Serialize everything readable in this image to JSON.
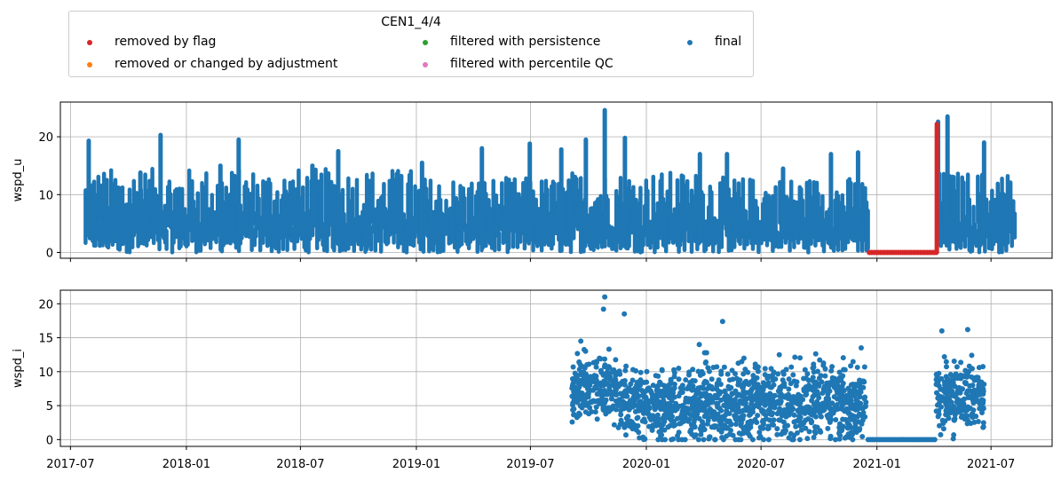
{
  "legend": {
    "title": "CEN1_4/4",
    "entries": [
      {
        "label": "removed by flag",
        "color": "#d62728"
      },
      {
        "label": "removed or changed by adjustment",
        "color": "#ff7f0e"
      },
      {
        "label": "filtered with persistence",
        "color": "#2ca02c"
      },
      {
        "label": "filtered with percentile QC",
        "color": "#e377c2"
      },
      {
        "label": "final",
        "color": "#1f77b4"
      }
    ]
  },
  "chart_data": [
    {
      "type": "scatter",
      "ylabel": "wspd_u",
      "xlim": [
        "2017-06-15",
        "2021-10-06"
      ],
      "ylim": [
        -1,
        26
      ],
      "yticks": [
        0,
        10,
        20
      ],
      "xticks": [
        "2017-07",
        "2018-01",
        "2018-07",
        "2019-01",
        "2019-07",
        "2020-01",
        "2020-07",
        "2021-01",
        "2021-07"
      ],
      "show_xtick_labels": false,
      "grid": true,
      "series": [
        {
          "name": "final",
          "color": "#1f77b4",
          "shape": "dense-bands",
          "segments": [
            {
              "start": "2017-07-25",
              "end": "2018-12-31",
              "low": 0,
              "high": 14.5
            },
            {
              "start": "2019-01-01",
              "end": "2019-04-30",
              "low": 0,
              "high": 13
            },
            {
              "start": "2019-05-01",
              "end": "2019-08-31",
              "low": 0,
              "high": 13
            },
            {
              "start": "2019-09-01",
              "end": "2020-04-15",
              "low": 0,
              "high": 14
            },
            {
              "start": "2020-04-16",
              "end": "2020-12-20",
              "low": 0,
              "high": 13
            },
            {
              "start": "2021-04-08",
              "end": "2021-08-10",
              "low": 0,
              "high": 14
            }
          ],
          "peaks": [
            [
              "2017-07-30",
              19.3
            ],
            [
              "2017-10-20",
              13.8
            ],
            [
              "2017-11-21",
              20.3
            ],
            [
              "2018-02-24",
              15.0
            ],
            [
              "2018-03-25",
              19.5
            ],
            [
              "2018-07-20",
              15.0
            ],
            [
              "2018-08-30",
              17.5
            ],
            [
              "2018-12-08",
              13.2
            ],
            [
              "2019-01-10",
              15.5
            ],
            [
              "2019-04-15",
              18.0
            ],
            [
              "2019-06-30",
              18.8
            ],
            [
              "2019-08-19",
              17.8
            ],
            [
              "2019-09-27",
              19.5
            ],
            [
              "2019-10-27",
              24.6
            ],
            [
              "2019-11-28",
              19.8
            ],
            [
              "2020-03-26",
              17.0
            ],
            [
              "2020-05-08",
              17.0
            ],
            [
              "2020-08-05",
              14.5
            ],
            [
              "2020-10-20",
              17.0
            ],
            [
              "2020-12-02",
              17.3
            ],
            [
              "2021-04-08",
              22.6
            ],
            [
              "2021-04-23",
              23.5
            ],
            [
              "2021-06-20",
              19.0
            ]
          ]
        },
        {
          "name": "removed by flag",
          "color": "#d62728",
          "shape": "flat",
          "segments": [
            {
              "start": "2020-12-20",
              "end": "2021-04-06",
              "value": 0
            }
          ],
          "peaks": [
            [
              "2021-04-06",
              22.2
            ]
          ]
        }
      ]
    },
    {
      "type": "scatter",
      "ylabel": "wspd_i",
      "xlim": [
        "2017-06-15",
        "2021-10-06"
      ],
      "ylim": [
        -1,
        22
      ],
      "yticks": [
        0,
        5,
        10,
        15,
        20
      ],
      "xticks": [
        "2017-07",
        "2018-01",
        "2018-07",
        "2019-01",
        "2019-07",
        "2020-01",
        "2020-07",
        "2021-01",
        "2021-07"
      ],
      "show_xtick_labels": true,
      "grid": true,
      "series": [
        {
          "name": "final",
          "color": "#1f77b4",
          "shape": "scatter-cloud",
          "segments": [
            {
              "start": "2019-09-05",
              "end": "2019-11-15",
              "center": 7.5,
              "spread": 4
            },
            {
              "start": "2019-11-16",
              "end": "2020-03-20",
              "center": 5,
              "spread": 4
            },
            {
              "start": "2020-03-21",
              "end": "2020-12-15",
              "center": 5.5,
              "spread": 4.5
            },
            {
              "start": "2021-04-05",
              "end": "2021-06-20",
              "center": 6,
              "spread": 4
            }
          ],
          "flat": [
            {
              "start": "2020-12-18",
              "end": "2021-04-05",
              "value": 0
            }
          ],
          "peaks": [
            [
              "2019-09-19",
              14.5
            ],
            [
              "2019-10-27",
              21.0
            ],
            [
              "2019-10-25",
              19.2
            ],
            [
              "2019-11-27",
              18.5
            ],
            [
              "2020-03-25",
              14.0
            ],
            [
              "2020-05-01",
              17.4
            ],
            [
              "2020-07-30",
              12.5
            ],
            [
              "2020-12-07",
              13.5
            ],
            [
              "2021-04-14",
              16.0
            ],
            [
              "2021-05-25",
              16.2
            ]
          ]
        }
      ]
    }
  ]
}
